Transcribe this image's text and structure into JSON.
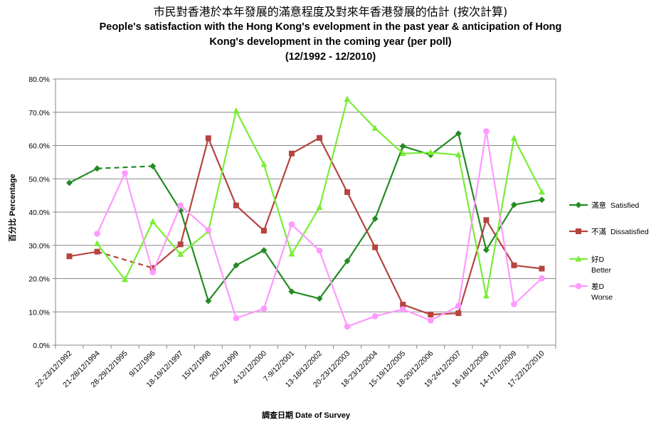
{
  "chart_data": {
    "type": "line",
    "title_zh": "市民對香港於本年發展的滿意程度及對來年香港發展的估計 (按次計算)",
    "title_en_line1": "People's satisfaction with the Hong Kong's evelopment in the past year & anticipation of Hong",
    "title_en_line2": "Kong's development in the coming year (per poll)",
    "title_range": "(12/1992 - 12/2010)",
    "ylabel": "百分比 Percentage",
    "xlabel": "調查日期 Date of Survey",
    "ylim": [
      0,
      80
    ],
    "y_ticks": [
      "0.0%",
      "10.0%",
      "20.0%",
      "30.0%",
      "40.0%",
      "50.0%",
      "60.0%",
      "70.0%",
      "80.0%"
    ],
    "categories": [
      "22-23/12/1992",
      "21-28/12/1994",
      "28-29/12/1995",
      "9/12/1996",
      "18-19/12/1997",
      "15/12/1998",
      "20/12/1999",
      "4-12/12/2000",
      "7-9/12/2001",
      "13-18/12/2002",
      "20-23/12/2003",
      "18-23/12/2004",
      "15-19/12/2005",
      "18-20/12/2006",
      "19-24/12/2007",
      "16-18/12/2008",
      "14-17/12/2009",
      "17-22/12/2010"
    ],
    "legend_position": "right",
    "series": [
      {
        "name": "滿意",
        "name_en": "Satisfied",
        "color": "#228B22",
        "marker": "diamond",
        "values": [
          48.8,
          53.1,
          null,
          53.8,
          40.5,
          13.3,
          24.0,
          28.5,
          16.1,
          14.0,
          25.3,
          38.0,
          59.8,
          57.2,
          63.6,
          28.6,
          42.2,
          43.7
        ],
        "dashed_segments": [
          [
            1,
            3
          ]
        ]
      },
      {
        "name": "不滿",
        "name_en": "Dissatisfied",
        "color": "#B5443F",
        "marker": "square",
        "values": [
          26.7,
          28.1,
          null,
          23.2,
          30.3,
          62.2,
          42.0,
          34.4,
          57.6,
          62.3,
          46.0,
          29.4,
          12.2,
          9.2,
          9.6,
          37.6,
          24.0,
          23.0
        ],
        "dashed_segments": [
          [
            1,
            3
          ]
        ]
      },
      {
        "name": "好D",
        "name_en": "Better",
        "color": "#77EE33",
        "marker": "triangle",
        "values": [
          null,
          30.5,
          19.7,
          37.1,
          27.3,
          34.2,
          70.4,
          54.3,
          27.4,
          41.4,
          73.9,
          65.2,
          57.6,
          57.9,
          57.2,
          14.8,
          62.2,
          46.0
        ],
        "dashed_segments": []
      },
      {
        "name": "差D",
        "name_en": "Worse",
        "color": "#FF99FF",
        "marker": "circle",
        "values": [
          null,
          33.5,
          51.7,
          21.9,
          42.0,
          34.6,
          8.1,
          11.0,
          36.3,
          28.4,
          5.6,
          8.7,
          10.8,
          7.4,
          11.8,
          64.3,
          12.3,
          20.1
        ],
        "dashed_segments": []
      }
    ]
  }
}
